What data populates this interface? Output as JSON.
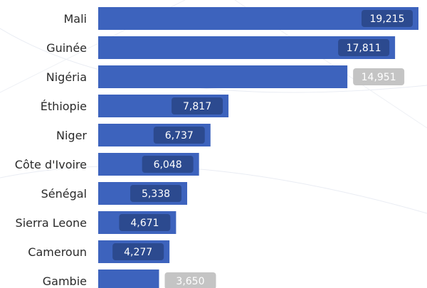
{
  "colors": {
    "bar": "#3d63bd",
    "label_box_outside": "#c4c4c4",
    "label_box_inside": "#2c4a8f",
    "label_text": "#ffffff",
    "category_text": "#2a2a2a",
    "decor": "#e6e9f2"
  },
  "chart_data": {
    "type": "bar",
    "orientation": "horizontal",
    "categories": [
      "Mali",
      "Guinée",
      "Nigéria",
      "Éthiopie",
      "Niger",
      "Côte d'Ivoire",
      "Sénégal",
      "Sierra Leone",
      "Cameroun",
      "Gambie"
    ],
    "values": [
      19215,
      17811,
      14951,
      7817,
      6737,
      6048,
      5338,
      4671,
      4277,
      3650
    ],
    "value_labels": [
      "19,215",
      "17,811",
      "14,951",
      "7,817",
      "6,737",
      "6,048",
      "5,338",
      "4,671",
      "4,277",
      "3,650"
    ],
    "xlim": [
      0,
      19215
    ],
    "grid": false,
    "legend": "none"
  }
}
